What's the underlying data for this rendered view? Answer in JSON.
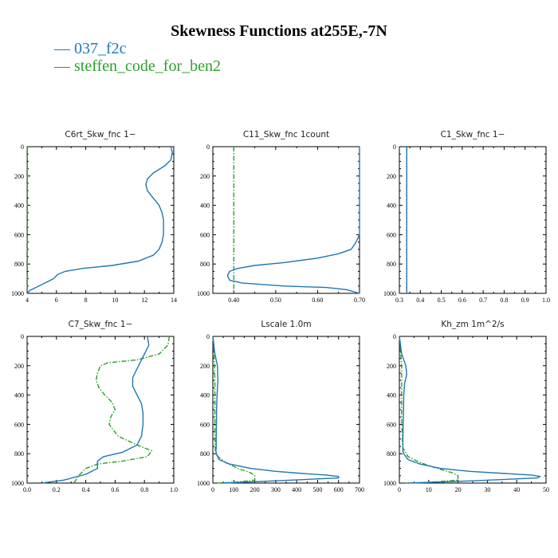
{
  "title": "Skewness Functions at255E,-7N",
  "legend": [
    {
      "label": "— 037_f2c",
      "color": "#1f77b4"
    },
    {
      "label": "— steffen_code_for_ben2",
      "color": "#2ca02c"
    }
  ],
  "colors": {
    "series1": "#1f77b4",
    "series2": "#2ca02c"
  },
  "chart_data": [
    {
      "type": "line",
      "title": "C6rt_Skw_fnc   1−",
      "xlim": [
        4,
        14
      ],
      "ylim": [
        0,
        1000
      ],
      "y_inverted": true,
      "xticks": [
        4,
        6,
        8,
        10,
        12,
        14
      ],
      "xtick_labels": [
        "4",
        "6",
        "8",
        "10",
        "12",
        "14"
      ],
      "yticks": [
        0,
        200,
        400,
        600,
        800,
        1000
      ],
      "ytick_labels": [
        "0",
        "200",
        "400",
        "600",
        "800",
        "1000"
      ],
      "series": [
        {
          "name": "037_f2c",
          "color": "#1f77b4",
          "dashed": false,
          "x": [
            13.8,
            13.9,
            13.8,
            13.4,
            12.6,
            12.2,
            12.1,
            12.2,
            12.6,
            13.0,
            13.2,
            13.3,
            13.3,
            13.3,
            13.2,
            13.0,
            12.6,
            11.6,
            9.8,
            7.8,
            6.6,
            6.1,
            5.8,
            5.0,
            4.2,
            4.0
          ],
          "y": [
            0,
            40,
            90,
            130,
            180,
            220,
            260,
            300,
            350,
            400,
            450,
            500,
            550,
            600,
            650,
            700,
            740,
            780,
            810,
            830,
            850,
            870,
            900,
            940,
            980,
            1000
          ]
        },
        {
          "name": "steffen_code_for_ben2",
          "color": "#2ca02c",
          "dashed": true,
          "x": [
            4.02,
            4.02
          ],
          "y": [
            0,
            1000
          ]
        }
      ]
    },
    {
      "type": "line",
      "title": "C11_Skw_fnc   1count",
      "xlim": [
        0.35,
        0.7
      ],
      "ylim": [
        0,
        1000
      ],
      "y_inverted": true,
      "xticks": [
        0.4,
        0.5,
        0.6,
        0.7
      ],
      "xtick_labels": [
        "0.40",
        "0.50",
        "0.60",
        "0.70"
      ],
      "yticks": [
        0,
        200,
        400,
        600,
        800,
        1000
      ],
      "ytick_labels": [
        "0",
        "200",
        "400",
        "600",
        "800",
        "1000"
      ],
      "series": [
        {
          "name": "037_f2c",
          "color": "#1f77b4",
          "dashed": false,
          "x": [
            0.7,
            0.7,
            0.69,
            0.68,
            0.65,
            0.6,
            0.52,
            0.45,
            0.41,
            0.39,
            0.385,
            0.39,
            0.42,
            0.52,
            0.62,
            0.67,
            0.7
          ],
          "y": [
            0,
            600,
            660,
            700,
            730,
            760,
            790,
            810,
            830,
            850,
            880,
            910,
            930,
            950,
            960,
            975,
            1000
          ]
        },
        {
          "name": "steffen_code_for_ben2",
          "color": "#2ca02c",
          "dashed": true,
          "x": [
            0.4,
            0.4
          ],
          "y": [
            0,
            1000
          ]
        }
      ]
    },
    {
      "type": "line",
      "title": "C1_Skw_fnc   1−",
      "xlim": [
        0.3,
        1.0
      ],
      "ylim": [
        0,
        1000
      ],
      "y_inverted": true,
      "xticks": [
        0.3,
        0.4,
        0.5,
        0.6,
        0.7,
        0.8,
        0.9,
        1.0
      ],
      "xtick_labels": [
        "0.3",
        "0.4",
        "0.5",
        "0.6",
        "0.7",
        "0.8",
        "0.9",
        "1.0"
      ],
      "yticks": [
        0,
        200,
        400,
        600,
        800,
        1000
      ],
      "ytick_labels": [
        "0",
        "200",
        "400",
        "600",
        "800",
        "1000"
      ],
      "series": [
        {
          "name": "037_f2c",
          "color": "#1f77b4",
          "dashed": false,
          "x": [
            0.335,
            0.335
          ],
          "y": [
            0,
            1000
          ]
        },
        {
          "name": "steffen_code_for_ben2",
          "color": "#2ca02c",
          "dashed": true,
          "x": [
            0.335,
            0.335
          ],
          "y": [
            0,
            1000
          ]
        }
      ]
    },
    {
      "type": "line",
      "title": "C7_Skw_fnc   1−",
      "xlim": [
        0.0,
        1.0
      ],
      "ylim": [
        0,
        1000
      ],
      "y_inverted": true,
      "xticks": [
        0.0,
        0.2,
        0.4,
        0.6,
        0.8,
        1.0
      ],
      "xtick_labels": [
        "0.0",
        "0.2",
        "0.4",
        "0.6",
        "0.8",
        "1.0"
      ],
      "yticks": [
        0,
        200,
        400,
        600,
        800,
        1000
      ],
      "ytick_labels": [
        "0",
        "200",
        "400",
        "600",
        "800",
        "1000"
      ],
      "series": [
        {
          "name": "037_f2c",
          "color": "#1f77b4",
          "dashed": false,
          "x": [
            0.82,
            0.83,
            0.8,
            0.76,
            0.72,
            0.72,
            0.75,
            0.78,
            0.79,
            0.79,
            0.78,
            0.75,
            0.65,
            0.52,
            0.48,
            0.48,
            0.4,
            0.25,
            0.1
          ],
          "y": [
            0,
            60,
            120,
            200,
            280,
            340,
            400,
            460,
            520,
            600,
            680,
            740,
            790,
            820,
            850,
            900,
            940,
            980,
            1000
          ]
        },
        {
          "name": "steffen_code_for_ben2",
          "color": "#2ca02c",
          "dashed": true,
          "x": [
            0.97,
            0.96,
            0.9,
            0.75,
            0.55,
            0.5,
            0.48,
            0.47,
            0.49,
            0.53,
            0.58,
            0.6,
            0.57,
            0.56,
            0.62,
            0.75,
            0.85,
            0.82,
            0.65,
            0.48,
            0.4,
            0.35,
            0.32
          ],
          "y": [
            0,
            60,
            120,
            160,
            180,
            200,
            250,
            300,
            350,
            400,
            450,
            500,
            550,
            600,
            680,
            740,
            780,
            820,
            850,
            870,
            900,
            950,
            1000
          ]
        }
      ]
    },
    {
      "type": "line",
      "title": "Lscale   1.0m",
      "xlim": [
        0,
        700
      ],
      "ylim": [
        0,
        1000
      ],
      "y_inverted": true,
      "xticks": [
        0,
        100,
        200,
        300,
        400,
        500,
        600,
        700
      ],
      "xtick_labels": [
        "0",
        "100",
        "200",
        "300",
        "400",
        "500",
        "600",
        "700"
      ],
      "yticks": [
        0,
        200,
        400,
        600,
        800,
        1000
      ],
      "ytick_labels": [
        "0",
        "200",
        "400",
        "600",
        "800",
        "1000"
      ],
      "series": [
        {
          "name": "037_f2c",
          "color": "#1f77b4",
          "dashed": false,
          "x": [
            0,
            10,
            22,
            24,
            20,
            18,
            17,
            16,
            16,
            15,
            16,
            30,
            80,
            180,
            300,
            430,
            540,
            600,
            600,
            300,
            50
          ],
          "y": [
            0,
            120,
            200,
            300,
            400,
            500,
            600,
            700,
            760,
            780,
            800,
            840,
            870,
            900,
            920,
            935,
            945,
            955,
            965,
            985,
            1000
          ]
        },
        {
          "name": "steffen_code_for_ben2",
          "color": "#2ca02c",
          "dashed": true,
          "x": [
            0,
            5,
            8,
            10,
            10,
            10,
            10,
            10,
            12,
            25,
            60,
            120,
            180,
            200,
            200,
            100,
            20
          ],
          "y": [
            0,
            100,
            200,
            300,
            400,
            500,
            600,
            700,
            780,
            820,
            860,
            900,
            930,
            950,
            980,
            995,
            1000
          ]
        }
      ]
    },
    {
      "type": "line",
      "title": "Kh_zm   1m^2/s",
      "xlim": [
        0,
        50
      ],
      "ylim": [
        0,
        1000
      ],
      "y_inverted": true,
      "xticks": [
        0,
        10,
        20,
        30,
        40,
        50
      ],
      "xtick_labels": [
        "0",
        "10",
        "20",
        "30",
        "40",
        "50"
      ],
      "yticks": [
        0,
        200,
        400,
        600,
        800,
        1000
      ],
      "ytick_labels": [
        "0",
        "200",
        "400",
        "600",
        "800",
        "1000"
      ],
      "series": [
        {
          "name": "037_f2c",
          "color": "#1f77b4",
          "dashed": false,
          "x": [
            0,
            0.8,
            2.2,
            2.5,
            1.8,
            1.5,
            1.4,
            1.3,
            1.2,
            1.2,
            1.5,
            3,
            7,
            14,
            24,
            36,
            45,
            48,
            47,
            25,
            3
          ],
          "y": [
            0,
            120,
            200,
            260,
            320,
            400,
            500,
            600,
            700,
            780,
            800,
            840,
            870,
            900,
            920,
            935,
            945,
            955,
            965,
            985,
            1000
          ]
        },
        {
          "name": "steffen_code_for_ben2",
          "color": "#2ca02c",
          "dashed": true,
          "x": [
            0,
            0.4,
            0.8,
            0.8,
            0.8,
            0.8,
            0.8,
            1.2,
            3,
            7,
            13,
            18,
            20,
            20,
            10,
            2
          ],
          "y": [
            0,
            100,
            200,
            300,
            400,
            500,
            600,
            760,
            820,
            860,
            900,
            930,
            950,
            980,
            995,
            1000
          ]
        }
      ]
    }
  ]
}
